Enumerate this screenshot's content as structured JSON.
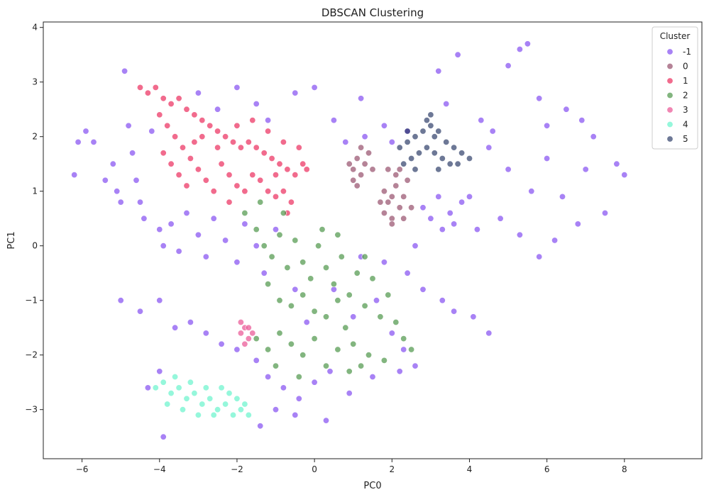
{
  "chart_data": {
    "type": "scatter",
    "title": "DBSCAN Clustering",
    "xlabel": "PC0",
    "ylabel": "PC1",
    "xlim": [
      -7.0,
      10.0
    ],
    "ylim": [
      -3.9,
      4.1
    ],
    "xticks": [
      -6,
      -4,
      -2,
      0,
      2,
      4,
      6,
      8
    ],
    "yticks": [
      -3,
      -2,
      -1,
      0,
      1,
      2,
      3,
      4
    ],
    "grid": false,
    "legend": {
      "title": "Cluster",
      "placement": "top-right",
      "entries": [
        "-1",
        "0",
        "1",
        "2",
        "3",
        "4",
        "5"
      ]
    },
    "series": [
      {
        "name": "-1",
        "color": "#7a3ff0",
        "points": [
          [
            -6.2,
            1.3
          ],
          [
            -6.1,
            1.9
          ],
          [
            -5.9,
            2.1
          ],
          [
            -5.7,
            1.9
          ],
          [
            -5.4,
            1.2
          ],
          [
            -5.2,
            1.5
          ],
          [
            -5.1,
            1.0
          ],
          [
            -5.0,
            0.8
          ],
          [
            -4.9,
            3.2
          ],
          [
            -4.8,
            2.2
          ],
          [
            -4.7,
            1.7
          ],
          [
            -4.6,
            1.2
          ],
          [
            -4.5,
            0.8
          ],
          [
            -4.4,
            0.5
          ],
          [
            -4.2,
            2.1
          ],
          [
            -4.0,
            0.3
          ],
          [
            -3.9,
            0.0
          ],
          [
            -3.7,
            0.4
          ],
          [
            -3.5,
            -0.1
          ],
          [
            -3.3,
            0.6
          ],
          [
            -3.0,
            0.2
          ],
          [
            -2.8,
            -0.2
          ],
          [
            -2.6,
            0.5
          ],
          [
            -2.3,
            0.1
          ],
          [
            -2.0,
            -0.3
          ],
          [
            -1.8,
            0.4
          ],
          [
            -1.5,
            0.0
          ],
          [
            -1.3,
            -0.5
          ],
          [
            -1.0,
            0.3
          ],
          [
            -5.0,
            -1.0
          ],
          [
            -4.5,
            -1.2
          ],
          [
            -4.0,
            -1.0
          ],
          [
            -3.6,
            -1.5
          ],
          [
            -3.2,
            -1.4
          ],
          [
            -2.8,
            -1.6
          ],
          [
            -2.4,
            -1.8
          ],
          [
            -2.0,
            -1.9
          ],
          [
            -1.5,
            -2.1
          ],
          [
            -1.2,
            -2.4
          ],
          [
            -0.8,
            -2.6
          ],
          [
            -0.4,
            -2.8
          ],
          [
            0.0,
            -2.5
          ],
          [
            0.4,
            -2.3
          ],
          [
            0.9,
            -2.7
          ],
          [
            1.5,
            -2.4
          ],
          [
            2.2,
            -2.3
          ],
          [
            2.6,
            -2.2
          ],
          [
            -4.3,
            -2.6
          ],
          [
            -4.0,
            -2.3
          ],
          [
            -3.9,
            -3.5
          ],
          [
            -1.4,
            -3.3
          ],
          [
            -1.0,
            -3.0
          ],
          [
            -0.5,
            -3.1
          ],
          [
            0.3,
            -3.2
          ],
          [
            -3.0,
            2.8
          ],
          [
            -2.0,
            2.9
          ],
          [
            -1.5,
            2.6
          ],
          [
            -0.5,
            2.8
          ],
          [
            0.0,
            2.9
          ],
          [
            0.5,
            2.3
          ],
          [
            1.2,
            2.7
          ],
          [
            1.8,
            2.2
          ],
          [
            0.8,
            1.9
          ],
          [
            1.3,
            2.0
          ],
          [
            2.0,
            1.9
          ],
          [
            2.4,
            2.1
          ],
          [
            3.2,
            3.2
          ],
          [
            3.7,
            3.5
          ],
          [
            3.4,
            2.6
          ],
          [
            4.3,
            2.3
          ],
          [
            4.6,
            2.1
          ],
          [
            5.0,
            3.3
          ],
          [
            5.3,
            3.6
          ],
          [
            5.5,
            3.7
          ],
          [
            5.8,
            2.7
          ],
          [
            6.0,
            2.2
          ],
          [
            6.5,
            2.5
          ],
          [
            6.9,
            2.3
          ],
          [
            7.2,
            2.0
          ],
          [
            7.8,
            1.5
          ],
          [
            8.0,
            1.3
          ],
          [
            7.5,
            0.6
          ],
          [
            6.8,
            0.4
          ],
          [
            6.2,
            0.1
          ],
          [
            5.8,
            -0.2
          ],
          [
            5.3,
            0.2
          ],
          [
            4.8,
            0.5
          ],
          [
            4.2,
            0.3
          ],
          [
            3.8,
            0.8
          ],
          [
            3.5,
            0.6
          ],
          [
            3.2,
            0.9
          ],
          [
            3.0,
            0.5
          ],
          [
            2.8,
            0.7
          ],
          [
            3.6,
            0.4
          ],
          [
            4.0,
            0.9
          ],
          [
            3.3,
            0.3
          ],
          [
            2.6,
            0.0
          ],
          [
            2.4,
            -0.5
          ],
          [
            2.8,
            -0.8
          ],
          [
            3.3,
            -1.0
          ],
          [
            3.6,
            -1.2
          ],
          [
            4.1,
            -1.3
          ],
          [
            4.5,
            -1.6
          ],
          [
            1.8,
            -0.3
          ],
          [
            1.6,
            -1.0
          ],
          [
            2.0,
            -1.6
          ],
          [
            2.3,
            -1.9
          ],
          [
            0.5,
            -0.8
          ],
          [
            1.0,
            -1.3
          ],
          [
            1.2,
            -0.2
          ],
          [
            -0.5,
            -0.8
          ],
          [
            -0.2,
            -1.4
          ],
          [
            6.0,
            1.6
          ],
          [
            6.4,
            0.9
          ],
          [
            5.6,
            1.0
          ],
          [
            5.0,
            1.4
          ],
          [
            4.5,
            1.8
          ],
          [
            7.0,
            1.4
          ],
          [
            -2.5,
            2.5
          ],
          [
            -1.2,
            2.3
          ]
        ]
      },
      {
        "name": "0",
        "color": "#8e4060",
        "points": [
          [
            0.9,
            1.5
          ],
          [
            1.0,
            1.4
          ],
          [
            1.1,
            1.6
          ],
          [
            1.2,
            1.3
          ],
          [
            1.3,
            1.5
          ],
          [
            1.0,
            1.2
          ],
          [
            1.4,
            1.7
          ],
          [
            1.2,
            1.8
          ],
          [
            1.1,
            1.1
          ],
          [
            1.5,
            1.4
          ],
          [
            1.8,
            1.0
          ],
          [
            1.9,
            0.8
          ],
          [
            2.0,
            0.9
          ],
          [
            2.1,
            1.1
          ],
          [
            1.8,
            0.6
          ],
          [
            2.2,
            0.7
          ],
          [
            2.3,
            0.9
          ],
          [
            2.0,
            0.5
          ],
          [
            2.4,
            1.2
          ],
          [
            2.1,
            1.3
          ],
          [
            1.9,
            1.4
          ],
          [
            2.3,
            0.5
          ],
          [
            1.7,
            0.8
          ],
          [
            2.2,
            1.4
          ],
          [
            2.5,
            0.7
          ],
          [
            2.0,
            0.4
          ]
        ]
      },
      {
        "name": "1",
        "color": "#ea1b50",
        "points": [
          [
            -4.5,
            2.9
          ],
          [
            -4.3,
            2.8
          ],
          [
            -4.1,
            2.9
          ],
          [
            -3.9,
            2.7
          ],
          [
            -3.7,
            2.6
          ],
          [
            -3.5,
            2.7
          ],
          [
            -3.3,
            2.5
          ],
          [
            -3.1,
            2.4
          ],
          [
            -2.9,
            2.3
          ],
          [
            -2.7,
            2.2
          ],
          [
            -2.5,
            2.1
          ],
          [
            -2.3,
            2.0
          ],
          [
            -2.1,
            1.9
          ],
          [
            -1.9,
            1.8
          ],
          [
            -1.7,
            1.9
          ],
          [
            -1.5,
            1.8
          ],
          [
            -1.3,
            1.7
          ],
          [
            -1.1,
            1.6
          ],
          [
            -0.9,
            1.5
          ],
          [
            -0.7,
            1.4
          ],
          [
            -0.5,
            1.3
          ],
          [
            -0.3,
            1.5
          ],
          [
            -0.2,
            1.4
          ],
          [
            -4.0,
            2.4
          ],
          [
            -3.8,
            2.2
          ],
          [
            -3.6,
            2.0
          ],
          [
            -3.4,
            1.8
          ],
          [
            -3.2,
            1.6
          ],
          [
            -3.0,
            1.4
          ],
          [
            -2.8,
            1.2
          ],
          [
            -2.6,
            1.0
          ],
          [
            -3.9,
            1.7
          ],
          [
            -3.7,
            1.5
          ],
          [
            -3.5,
            1.3
          ],
          [
            -3.3,
            1.1
          ],
          [
            -2.4,
            1.5
          ],
          [
            -2.2,
            1.3
          ],
          [
            -2.0,
            1.1
          ],
          [
            -1.8,
            1.0
          ],
          [
            -1.6,
            1.3
          ],
          [
            -1.4,
            1.2
          ],
          [
            -1.2,
            1.0
          ],
          [
            -1.0,
            0.9
          ],
          [
            -0.8,
            1.0
          ],
          [
            -0.6,
            0.8
          ],
          [
            -2.0,
            2.2
          ],
          [
            -1.6,
            2.3
          ],
          [
            -1.2,
            2.1
          ],
          [
            -0.8,
            1.9
          ],
          [
            -0.4,
            1.8
          ],
          [
            -2.9,
            2.0
          ],
          [
            -2.5,
            1.8
          ],
          [
            -3.1,
            1.9
          ],
          [
            -1.0,
            1.3
          ],
          [
            -0.7,
            0.6
          ],
          [
            -2.2,
            0.8
          ]
        ]
      },
      {
        "name": "2",
        "color": "#3f8d3a",
        "points": [
          [
            -1.8,
            0.6
          ],
          [
            -1.5,
            0.3
          ],
          [
            -1.3,
            0.0
          ],
          [
            -1.1,
            -0.2
          ],
          [
            -0.9,
            0.2
          ],
          [
            -0.7,
            -0.4
          ],
          [
            -0.5,
            0.1
          ],
          [
            -0.3,
            -0.3
          ],
          [
            -0.1,
            -0.6
          ],
          [
            0.1,
            0.0
          ],
          [
            0.3,
            -0.4
          ],
          [
            0.5,
            -0.7
          ],
          [
            0.7,
            -0.2
          ],
          [
            0.9,
            -0.9
          ],
          [
            1.1,
            -0.5
          ],
          [
            1.3,
            -1.1
          ],
          [
            1.5,
            -0.6
          ],
          [
            1.7,
            -1.3
          ],
          [
            1.9,
            -0.9
          ],
          [
            2.1,
            -1.4
          ],
          [
            2.3,
            -1.7
          ],
          [
            2.5,
            -1.9
          ],
          [
            -1.2,
            -0.7
          ],
          [
            -0.9,
            -1.0
          ],
          [
            -0.6,
            -1.1
          ],
          [
            -0.3,
            -0.9
          ],
          [
            0.0,
            -1.2
          ],
          [
            0.3,
            -1.3
          ],
          [
            0.6,
            -1.0
          ],
          [
            0.8,
            -1.5
          ],
          [
            1.0,
            -1.8
          ],
          [
            1.2,
            -2.2
          ],
          [
            1.4,
            -2.0
          ],
          [
            -1.5,
            -1.7
          ],
          [
            -1.2,
            -1.9
          ],
          [
            -0.9,
            -1.6
          ],
          [
            -0.6,
            -1.8
          ],
          [
            -0.3,
            -2.0
          ],
          [
            0.0,
            -1.7
          ],
          [
            0.3,
            -2.2
          ],
          [
            0.6,
            -1.9
          ],
          [
            0.9,
            -2.3
          ],
          [
            -1.0,
            -2.2
          ],
          [
            -0.4,
            -2.4
          ],
          [
            0.2,
            0.3
          ],
          [
            0.6,
            0.2
          ],
          [
            -1.4,
            0.8
          ],
          [
            -0.8,
            0.6
          ],
          [
            1.3,
            -0.2
          ],
          [
            1.8,
            -2.1
          ]
        ]
      },
      {
        "name": "3",
        "color": "#e8458a",
        "points": [
          [
            -1.9,
            -1.6
          ],
          [
            -1.8,
            -1.5
          ],
          [
            -1.7,
            -1.7
          ],
          [
            -1.8,
            -1.8
          ],
          [
            -1.6,
            -1.6
          ],
          [
            -1.9,
            -1.4
          ],
          [
            -1.7,
            -1.5
          ]
        ]
      },
      {
        "name": "4",
        "color": "#5cf2c8",
        "points": [
          [
            -4.1,
            -2.6
          ],
          [
            -3.9,
            -2.5
          ],
          [
            -3.7,
            -2.7
          ],
          [
            -3.5,
            -2.6
          ],
          [
            -3.3,
            -2.8
          ],
          [
            -3.1,
            -2.7
          ],
          [
            -2.9,
            -2.9
          ],
          [
            -2.7,
            -2.8
          ],
          [
            -2.5,
            -3.0
          ],
          [
            -2.3,
            -2.9
          ],
          [
            -2.1,
            -3.1
          ],
          [
            -1.9,
            -3.0
          ],
          [
            -1.7,
            -3.1
          ],
          [
            -3.8,
            -2.9
          ],
          [
            -3.4,
            -3.0
          ],
          [
            -3.0,
            -3.1
          ],
          [
            -2.6,
            -3.1
          ],
          [
            -2.2,
            -2.7
          ],
          [
            -2.8,
            -2.6
          ],
          [
            -3.2,
            -2.5
          ],
          [
            -2.4,
            -2.6
          ],
          [
            -1.8,
            -2.9
          ],
          [
            -3.6,
            -2.4
          ],
          [
            -2.0,
            -2.8
          ]
        ]
      },
      {
        "name": "5",
        "color": "#1f2f5e",
        "points": [
          [
            2.2,
            1.8
          ],
          [
            2.4,
            1.9
          ],
          [
            2.6,
            2.0
          ],
          [
            2.8,
            2.1
          ],
          [
            3.0,
            2.2
          ],
          [
            3.2,
            2.1
          ],
          [
            3.4,
            1.9
          ],
          [
            3.6,
            1.8
          ],
          [
            3.8,
            1.7
          ],
          [
            4.0,
            1.6
          ],
          [
            2.5,
            1.6
          ],
          [
            2.7,
            1.7
          ],
          [
            2.9,
            1.8
          ],
          [
            3.1,
            1.7
          ],
          [
            3.3,
            1.6
          ],
          [
            3.5,
            1.5
          ],
          [
            2.3,
            1.5
          ],
          [
            2.9,
            2.3
          ],
          [
            3.0,
            2.4
          ],
          [
            2.6,
            1.4
          ],
          [
            3.2,
            1.4
          ],
          [
            3.7,
            1.5
          ],
          [
            2.4,
            2.1
          ],
          [
            3.1,
            2.0
          ]
        ]
      }
    ]
  }
}
